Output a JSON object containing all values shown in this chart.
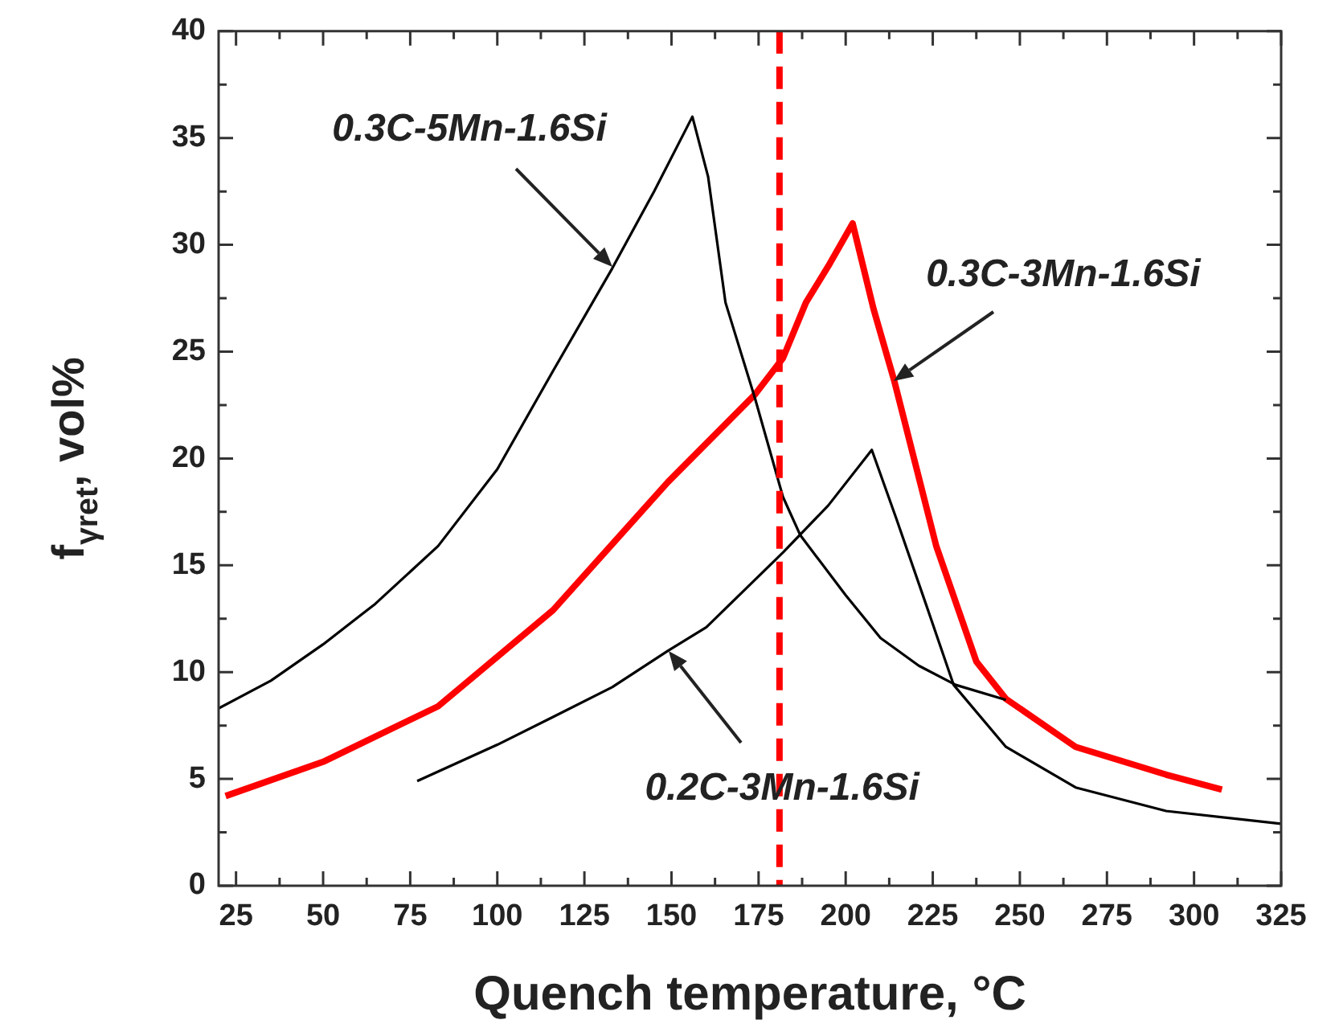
{
  "chart_data": {
    "type": "line",
    "xlabel": "Quench temperature, °C",
    "ylabel": "f$_{γret}$, vol%",
    "xlim": [
      20,
      325
    ],
    "xticks": [
      25,
      {
        "value": 37.5,
        "label": null
      },
      50,
      {
        "value": 62.5,
        "label": null
      },
      75,
      {
        "value": 87.5,
        "label": null
      },
      100,
      {
        "value": 112.5,
        "label": null
      },
      125,
      {
        "value": 137.5,
        "label": null
      },
      150,
      {
        "value": 162.5,
        "label": null
      },
      175,
      {
        "value": 187.5,
        "label": null
      },
      200,
      {
        "value": 212.5,
        "label": null
      },
      225,
      {
        "value": 237.5,
        "label": null
      },
      250,
      {
        "value": 262.5,
        "label": null
      },
      275,
      {
        "value": 287.5,
        "label": null
      },
      300,
      {
        "value": 312.5,
        "label": null
      },
      325
    ],
    "ylim": [
      0,
      40
    ],
    "yticks": [
      0,
      {
        "value": 2.5,
        "label": null
      },
      5,
      {
        "value": 7.5,
        "label": null
      },
      10,
      {
        "value": 12.5,
        "label": null
      },
      15,
      {
        "value": 17.5,
        "label": null
      },
      20,
      {
        "value": 22.5,
        "label": null
      },
      25,
      {
        "value": 27.5,
        "label": null
      },
      30,
      {
        "value": 32.5,
        "label": null
      },
      35,
      {
        "value": 37.5,
        "label": null
      },
      40
    ],
    "grid": false,
    "legend": false,
    "marker": "none",
    "series": [
      {
        "color": "#000000",
        "x": [
          20,
          35,
          50,
          65,
          83,
          100,
          116,
          133,
          145,
          156,
          160.5,
          165.5,
          174,
          182,
          187,
          200,
          210,
          221,
          231.6,
          246
        ],
        "values": [
          8.3,
          9.6,
          11.3,
          13.2,
          15.9,
          19.5,
          24.1,
          28.9,
          32.5,
          36.0,
          33.2,
          27.3,
          22.8,
          18.2,
          16.4,
          13.6,
          11.6,
          10.3,
          9.4,
          8.7
        ]
      },
      {
        "color": "#ff0000",
        "x": [
          22,
          50,
          83,
          116,
          149,
          174,
          182,
          188.6,
          195,
          202,
          208,
          214,
          226,
          237.5,
          246,
          266,
          292,
          308
        ],
        "values": [
          4.2,
          5.8,
          8.4,
          12.9,
          18.9,
          23.0,
          24.7,
          27.3,
          29.0,
          31.0,
          27.0,
          23.6,
          15.9,
          10.5,
          8.75,
          6.5,
          5.2,
          4.5
        ]
      },
      {
        "color": "#000000",
        "x": [
          77,
          100,
          116,
          133,
          149,
          160,
          182,
          195,
          207.5,
          214.5,
          223,
          231,
          246,
          266,
          292,
          325
        ],
        "values": [
          4.9,
          6.6,
          7.9,
          9.3,
          11.0,
          12.1,
          15.6,
          17.8,
          20.4,
          17.2,
          13.2,
          9.4,
          6.5,
          4.6,
          3.5,
          2.9
        ]
      }
    ],
    "ref_lines": [
      {
        "axis": "x",
        "value": 181,
        "color": "#ff0000",
        "line_style": "dashed"
      }
    ],
    "annotations": [
      "0.3C-5Mn-1.6Si",
      {
        "text": "0.3C-3Mn-1.6Si",
        "x": 214,
        "y": 23.6
      },
      {
        "text": "0.2C-3Mn-1.6Si",
        "x": 149,
        "y": 11.0
      }
    ]
  }
}
